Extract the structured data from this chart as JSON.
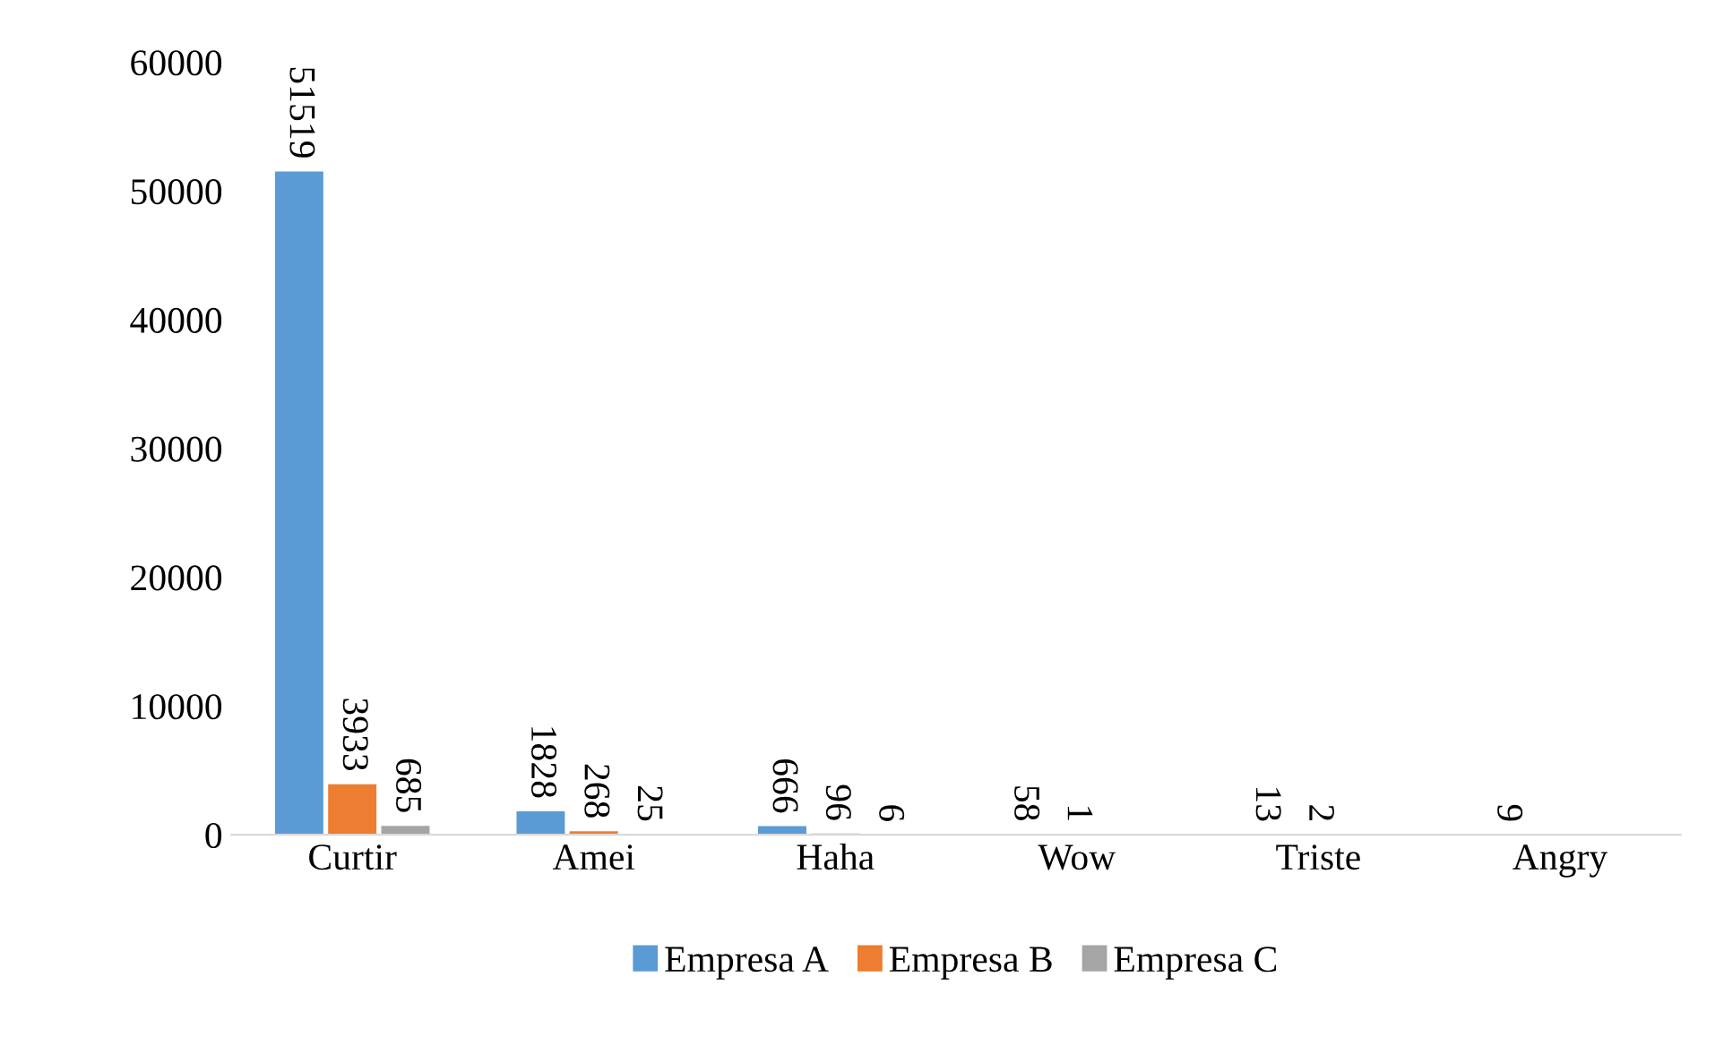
{
  "chart_data": {
    "type": "bar",
    "categories": [
      "Curtir",
      "Amei",
      "Haha",
      "Wow",
      "Triste",
      "Angry"
    ],
    "series": [
      {
        "name": "Empresa A",
        "color": "#5b9bd5",
        "values": [
          51519,
          1828,
          666,
          58,
          13,
          9
        ]
      },
      {
        "name": "Empresa B",
        "color": "#ed7d31",
        "values": [
          3933,
          268,
          96,
          1,
          2,
          null
        ]
      },
      {
        "name": "Empresa C",
        "color": "#a5a5a5",
        "values": [
          685,
          25,
          6,
          null,
          null,
          null
        ]
      }
    ],
    "ylim": [
      0,
      60000
    ],
    "yticks": [
      0,
      10000,
      20000,
      30000,
      40000,
      50000,
      60000
    ],
    "grid": false,
    "legend": "bottom",
    "data_labels": true
  }
}
